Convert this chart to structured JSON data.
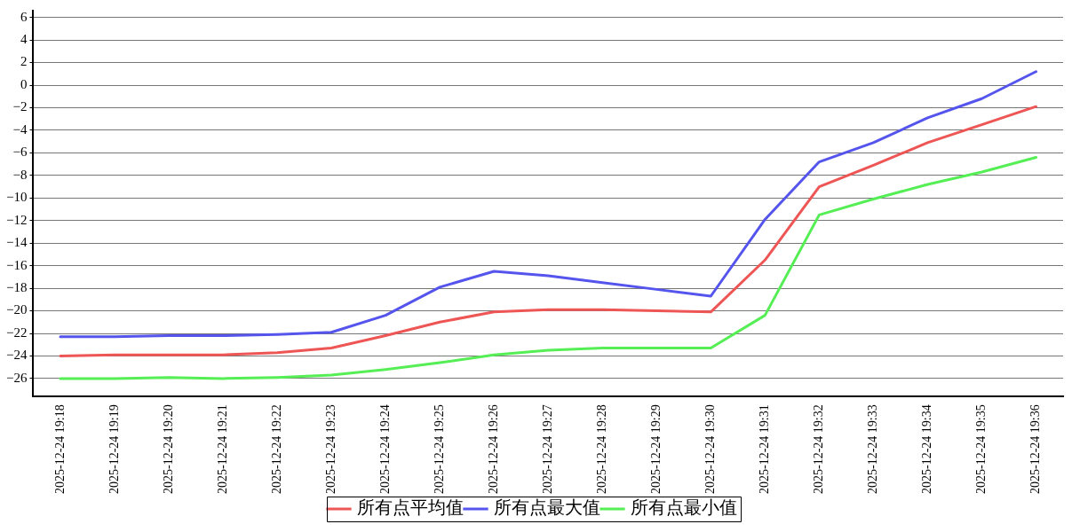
{
  "chart_data": {
    "type": "line",
    "categories": [
      "2025-12-24 19:18",
      "2025-12-24 19:19",
      "2025-12-24 19:20",
      "2025-12-24 19:21",
      "2025-12-24 19:22",
      "2025-12-24 19:23",
      "2025-12-24 19:24",
      "2025-12-24 19:25",
      "2025-12-24 19:26",
      "2025-12-24 19:27",
      "2025-12-24 19:28",
      "2025-12-24 19:29",
      "2025-12-24 19:30",
      "2025-12-24 19:31",
      "2025-12-24 19:32",
      "2025-12-24 19:33",
      "2025-12-24 19:34",
      "2025-12-24 19:35",
      "2025-12-24 19:36"
    ],
    "series": [
      {
        "name": "所有点平均值",
        "color": "#ee5555",
        "values": [
          -24.0,
          -23.9,
          -23.9,
          -23.9,
          -23.7,
          -23.3,
          -22.2,
          -21.0,
          -20.1,
          -19.9,
          -19.9,
          -20.0,
          -20.1,
          -15.5,
          -9.0,
          -7.1,
          -5.1,
          -3.5,
          -1.9
        ]
      },
      {
        "name": "所有点最大值",
        "color": "#5555ee",
        "values": [
          -22.3,
          -22.3,
          -22.2,
          -22.2,
          -22.1,
          -21.9,
          -20.4,
          -17.9,
          -16.5,
          -16.9,
          -17.5,
          -18.1,
          -18.7,
          -11.9,
          -6.8,
          -5.1,
          -2.9,
          -1.2,
          1.2
        ]
      },
      {
        "name": "所有点最小值",
        "color": "#55ee55",
        "values": [
          -26.0,
          -26.0,
          -25.9,
          -26.0,
          -25.9,
          -25.7,
          -25.2,
          -24.6,
          -23.9,
          -23.5,
          -23.3,
          -23.3,
          -23.3,
          -20.4,
          -11.5,
          -10.1,
          -8.8,
          -7.7,
          -6.4
        ]
      }
    ],
    "ylim": [
      -27.6,
      6.6
    ],
    "yticks": [
      -26,
      -24,
      -22,
      -20,
      -18,
      -16,
      -14,
      -12,
      -10,
      -8,
      -6,
      -4,
      -2,
      0,
      2,
      4,
      6
    ],
    "grid": "y",
    "legend": "bottom",
    "marker": "none",
    "line_style": "solid"
  }
}
